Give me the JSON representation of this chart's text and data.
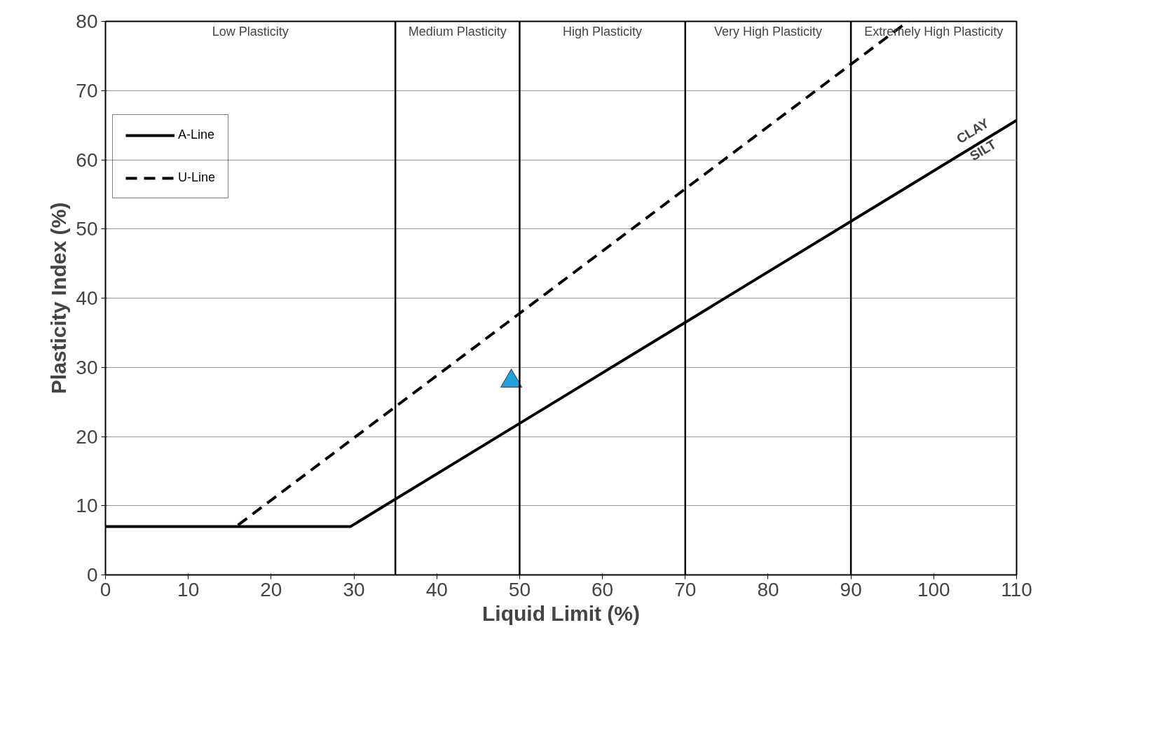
{
  "chart_data": {
    "type": "line",
    "xlabel": "Liquid Limit (%)",
    "ylabel": "Plasticity Index (%)",
    "xlim": [
      0,
      110
    ],
    "ylim": [
      0,
      80
    ],
    "xticks": [
      0,
      10,
      20,
      30,
      40,
      50,
      60,
      70,
      80,
      90,
      100,
      110
    ],
    "yticks": [
      0,
      10,
      20,
      30,
      40,
      50,
      60,
      70,
      80
    ],
    "grid": "y",
    "legend": "top left",
    "series": [
      {
        "name": "A-Line",
        "color": "#000000",
        "x": [
          0,
          29.6,
          110
        ],
        "values": [
          7,
          7,
          65.7
        ],
        "line_style": "solid"
      },
      {
        "name": "U-Line",
        "color": "#000000",
        "x": [
          16,
          96.9
        ],
        "values": [
          7.2,
          80
        ],
        "line_style": "dashed"
      },
      {
        "type": "scatter",
        "marker": "triangle",
        "color": "#1fa3dc",
        "x": [
          49
        ],
        "values": [
          28
        ]
      }
    ],
    "ref_lines": [
      {
        "axis": "x",
        "value": 35,
        "label": null
      },
      {
        "axis": "x",
        "value": 50,
        "label": null
      },
      {
        "axis": "x",
        "value": 70,
        "label": null
      },
      {
        "axis": "x",
        "value": 90,
        "label": null
      }
    ],
    "annotations": [
      "Low Plasticity",
      "Medium Plasticity",
      "High Plasticity",
      "Very High Plasticity",
      "Extremely High Plasticity",
      "CLAY",
      "SILT"
    ]
  }
}
